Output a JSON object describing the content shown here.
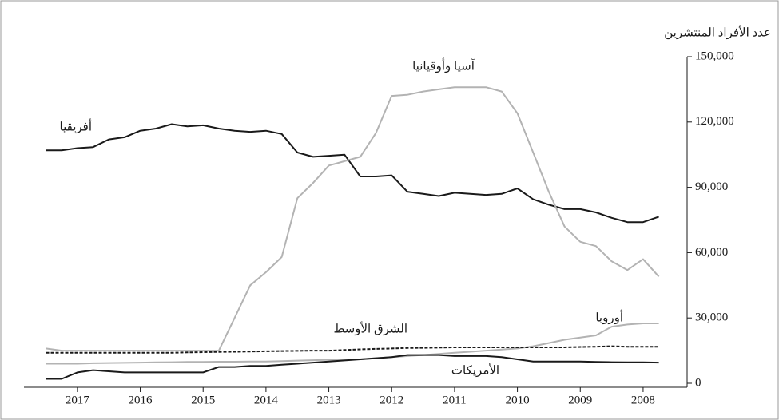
{
  "chart_data": {
    "type": "line",
    "y_axis_label": "عدد الأفراد المنتشرين",
    "x": [
      2017.5,
      2017.25,
      2017,
      2016.75,
      2016.5,
      2016.25,
      2016,
      2015.75,
      2015.5,
      2015.25,
      2015,
      2014.75,
      2014.5,
      2014.25,
      2014,
      2013.75,
      2013.5,
      2013.25,
      2013,
      2012.75,
      2012.5,
      2012.25,
      2012,
      2011.75,
      2011.5,
      2011.25,
      2011,
      2010.75,
      2010.5,
      2010.25,
      2010,
      2009.75,
      2009.5,
      2009.25,
      2009,
      2008.75,
      2008.5,
      2008.25,
      2008,
      2007.75
    ],
    "xlim": [
      2017.85,
      2007.3
    ],
    "xticks": [
      2017,
      2016,
      2015,
      2014,
      2013,
      2012,
      2011,
      2010,
      2009,
      2008
    ],
    "ylim": [
      0,
      150000
    ],
    "yticks": [
      0,
      {
        "value": 30000,
        "label": "30,000"
      },
      {
        "value": 60000,
        "label": "60,000"
      },
      {
        "value": 90000,
        "label": "90,000"
      },
      {
        "value": 120000,
        "label": "120,000"
      },
      {
        "value": 150000,
        "label": "150,000"
      }
    ],
    "series": [
      {
        "name": "أفريقيا",
        "color": "#1a1a1a",
        "style": "solid",
        "values": [
          107000,
          107000,
          108000,
          108500,
          112000,
          113000,
          116000,
          117000,
          119000,
          118000,
          118500,
          117000,
          116000,
          115500,
          116000,
          114500,
          106000,
          104000,
          104500,
          105000,
          95000,
          95000,
          95500,
          88000,
          87000,
          86000,
          87500,
          87000,
          86500,
          87000,
          89500,
          84500,
          82000,
          80000,
          80000,
          78500,
          76000,
          74000,
          74000,
          76500
        ]
      },
      {
        "name": "آسيا وأوقيانيا",
        "color": "#b3b3b3",
        "style": "solid",
        "values": [
          16000,
          15000,
          15000,
          15000,
          15000,
          15000,
          15000,
          15000,
          15000,
          15000,
          15000,
          15000,
          30000,
          45000,
          51000,
          58000,
          85000,
          92000,
          100000,
          102000,
          104000,
          115000,
          132000,
          132500,
          134000,
          135000,
          136000,
          136000,
          136000,
          134000,
          124000,
          106000,
          88000,
          72000,
          65000,
          63000,
          56000,
          52000,
          57000,
          49000
        ]
      },
      {
        "name": "أوروبا",
        "color": "#b3b3b3",
        "style": "solid",
        "values": [
          9000,
          9000,
          9000,
          9200,
          9300,
          9400,
          9500,
          9600,
          9700,
          9800,
          9800,
          9900,
          9900,
          10000,
          10000,
          10200,
          10400,
          10600,
          10800,
          10900,
          11000,
          11500,
          12000,
          12500,
          13000,
          13500,
          14000,
          14500,
          15000,
          15500,
          16000,
          17000,
          18500,
          20000,
          21000,
          22000,
          26000,
          27000,
          27500,
          27500
        ]
      },
      {
        "name": "الشرق الأوسط",
        "color": "#1a1a1a",
        "style": "dashed",
        "values": [
          14000,
          14000,
          14000,
          14000,
          14000,
          14000,
          14000,
          14000,
          14000,
          14200,
          14300,
          14400,
          14500,
          14600,
          14700,
          14800,
          14900,
          15000,
          15000,
          15300,
          15600,
          15800,
          16000,
          16200,
          16300,
          16400,
          16500,
          16500,
          16500,
          16500,
          16500,
          16500,
          16500,
          16500,
          16700,
          16800,
          17000,
          16800,
          16800,
          16800
        ]
      },
      {
        "name": "الأمريكات",
        "color": "#1a1a1a",
        "style": "solid",
        "values": [
          2000,
          2000,
          5000,
          6000,
          5500,
          5000,
          5000,
          5000,
          5000,
          5000,
          5000,
          7500,
          7500,
          8000,
          8000,
          8500,
          9000,
          9500,
          10000,
          10500,
          11000,
          11500,
          12000,
          13000,
          13000,
          13000,
          12500,
          12500,
          12500,
          12000,
          11000,
          10000,
          10000,
          10000,
          10000,
          9800,
          9700,
          9600,
          9600,
          9500
        ]
      }
    ]
  }
}
